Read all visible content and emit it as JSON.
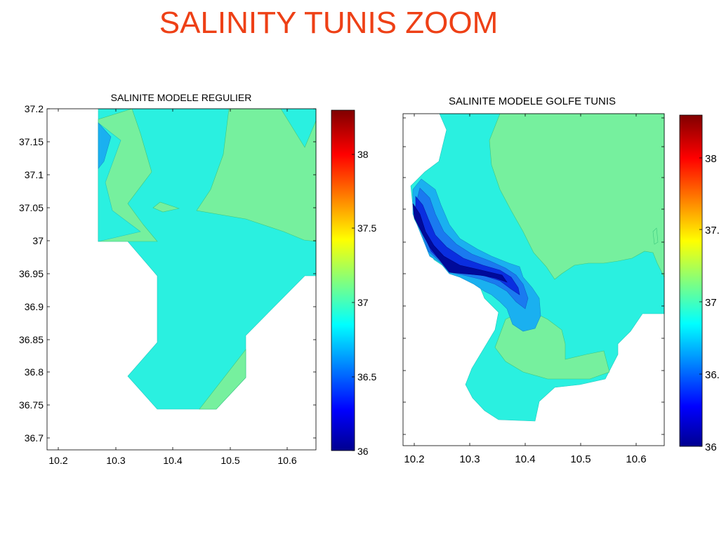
{
  "slide": {
    "title": "SALINITY TUNIS ZOOM"
  },
  "colors": {
    "title": "#ee4016",
    "land": "#ffffff",
    "contour_36_8": "#1ab0f0",
    "contour_37": "#2af0e0",
    "contour_37_2": "#76f09e"
  },
  "colormap": "jet",
  "chart_data": [
    {
      "type": "contour",
      "title": "SALINITE MODELE REGULIER",
      "xlabel": "",
      "ylabel": "",
      "xlim": [
        10.18,
        10.65
      ],
      "ylim": [
        36.68,
        37.2
      ],
      "x_ticks": [
        "10.2",
        "10.3",
        "10.4",
        "10.5",
        "10.6"
      ],
      "y_ticks": [
        "37.2",
        "37.15",
        "37.1",
        "37.05",
        "37",
        "36.95",
        "36.9",
        "36.85",
        "36.8",
        "36.75",
        "36.7"
      ],
      "colorbar": {
        "min": 36,
        "max": 38.3,
        "ticks": [
          "38",
          "37.5",
          "37",
          "36.5",
          "36"
        ]
      },
      "salinity_range": [
        36.8,
        37.3
      ]
    },
    {
      "type": "contour",
      "title": "SALINITE MODELE GOLFE TUNIS",
      "xlabel": "",
      "ylabel": "",
      "xlim": [
        10.18,
        10.65
      ],
      "ylim": [
        36.68,
        37.2
      ],
      "x_ticks": [
        "10.2",
        "10.3",
        "10.4",
        "10.5",
        "10.6"
      ],
      "y_ticks": [],
      "colorbar": {
        "min": 36,
        "max": 38.3,
        "ticks": [
          "38",
          "37.",
          "37",
          "36.",
          "36"
        ]
      },
      "salinity_range": [
        36.0,
        37.3
      ]
    }
  ]
}
